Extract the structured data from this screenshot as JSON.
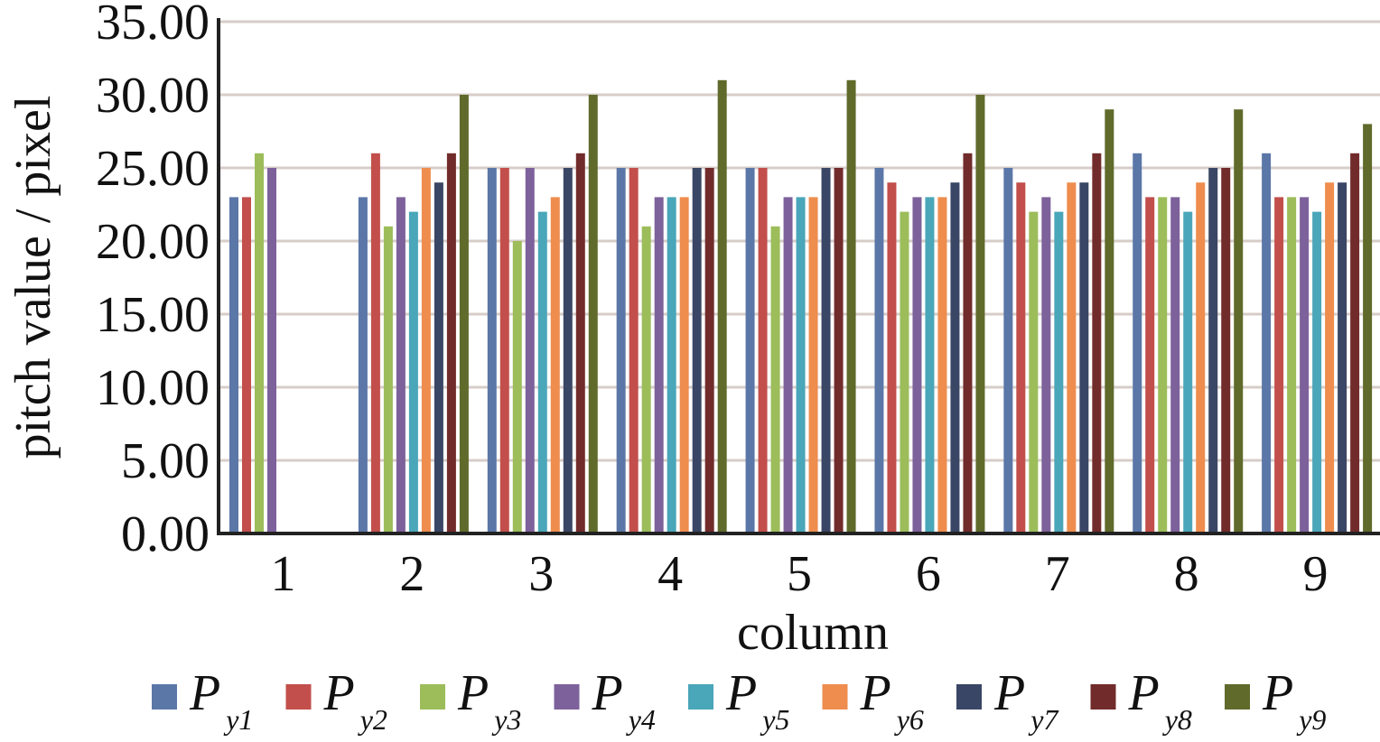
{
  "chart_data": {
    "type": "bar",
    "ylabel": "pitch value / pixel",
    "xlabel": "column",
    "ylim": [
      0,
      35
    ],
    "y_ticks": [
      "0.00",
      "5.00",
      "10.00",
      "15.00",
      "20.00",
      "25.00",
      "30.00",
      "35.00"
    ],
    "categories": [
      "1",
      "2",
      "3",
      "4",
      "5",
      "6",
      "7",
      "8",
      "9"
    ],
    "grid": "horizontal",
    "legend_position": "bottom",
    "series": [
      {
        "name": "P",
        "sub": "y1",
        "color": "#5b77a8",
        "values": [
          23,
          23,
          25,
          25,
          25,
          25,
          25,
          26,
          26
        ]
      },
      {
        "name": "P",
        "sub": "y2",
        "color": "#c24f4b",
        "values": [
          23,
          26,
          25,
          25,
          25,
          24,
          24,
          23,
          23
        ]
      },
      {
        "name": "P",
        "sub": "y3",
        "color": "#9cbd5a",
        "values": [
          26,
          21,
          20,
          21,
          21,
          22,
          22,
          23,
          23
        ]
      },
      {
        "name": "P",
        "sub": "y4",
        "color": "#7d619b",
        "values": [
          25,
          23,
          25,
          23,
          23,
          23,
          23,
          23,
          23
        ]
      },
      {
        "name": "P",
        "sub": "y5",
        "color": "#4aa6b9",
        "values": [
          null,
          22,
          22,
          23,
          23,
          23,
          22,
          22,
          22
        ]
      },
      {
        "name": "P",
        "sub": "y6",
        "color": "#ee8d4e",
        "values": [
          null,
          25,
          23,
          23,
          23,
          23,
          24,
          24,
          24
        ]
      },
      {
        "name": "P",
        "sub": "y7",
        "color": "#3a4665",
        "values": [
          null,
          24,
          25,
          25,
          25,
          24,
          24,
          25,
          24
        ]
      },
      {
        "name": "P",
        "sub": "y8",
        "color": "#722b2b",
        "values": [
          null,
          26,
          26,
          25,
          25,
          26,
          26,
          25,
          26
        ]
      },
      {
        "name": "P",
        "sub": "y9",
        "color": "#5f6a2b",
        "values": [
          null,
          30,
          30,
          31,
          31,
          30,
          29,
          29,
          28
        ]
      }
    ]
  }
}
